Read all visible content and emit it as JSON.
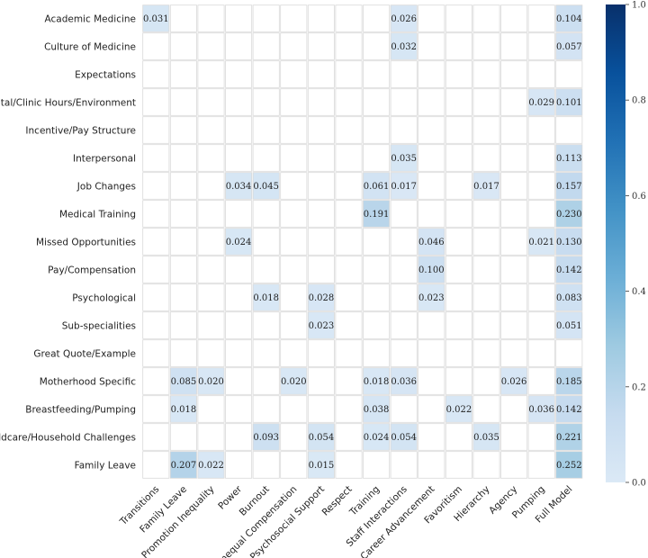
{
  "chart_data": {
    "type": "heatmap",
    "title": "",
    "xlabel": "",
    "ylabel": "",
    "rows": [
      "Academic Medicine",
      "Culture of Medicine",
      "Expectations",
      "Hospital/Clinic Hours/Environment",
      "Incentive/Pay Structure",
      "Interpersonal",
      "Job Changes",
      "Medical Training",
      "Missed Opportunities",
      "Pay/Compensation",
      "Psychological",
      "Sub-specialities",
      "Great Quote/Example",
      "Motherhood Specific",
      "Breastfeeding/Pumping",
      "Childcare/Household Challenges",
      "Family Leave"
    ],
    "columns": [
      "Transitions",
      "Family Leave",
      "Promotion Inequality",
      "Power",
      "Burnout",
      "Unequal Compensation",
      "Psychosocial Support",
      "Respect",
      "Training",
      "Staff Interactions",
      "Career Advancement",
      "Favoritism",
      "Hierarchy",
      "Agency",
      "Pumping",
      "Full Model"
    ],
    "values": [
      [
        0.031,
        null,
        null,
        null,
        null,
        null,
        null,
        null,
        null,
        0.026,
        null,
        null,
        null,
        null,
        null,
        0.104
      ],
      [
        null,
        null,
        null,
        null,
        null,
        null,
        null,
        null,
        null,
        0.032,
        null,
        null,
        null,
        null,
        null,
        0.057
      ],
      [
        null,
        null,
        null,
        null,
        null,
        null,
        null,
        null,
        null,
        null,
        null,
        null,
        null,
        null,
        null,
        null
      ],
      [
        null,
        null,
        null,
        null,
        null,
        null,
        null,
        null,
        null,
        null,
        null,
        null,
        null,
        null,
        0.029,
        0.101
      ],
      [
        null,
        null,
        null,
        null,
        null,
        null,
        null,
        null,
        null,
        null,
        null,
        null,
        null,
        null,
        null,
        null
      ],
      [
        null,
        null,
        null,
        null,
        null,
        null,
        null,
        null,
        null,
        0.035,
        null,
        null,
        null,
        null,
        null,
        0.113
      ],
      [
        null,
        null,
        null,
        0.034,
        0.045,
        null,
        null,
        null,
        0.061,
        0.017,
        null,
        null,
        0.017,
        null,
        null,
        0.157
      ],
      [
        null,
        null,
        null,
        null,
        null,
        null,
        null,
        null,
        0.191,
        null,
        null,
        null,
        null,
        null,
        null,
        0.23
      ],
      [
        null,
        null,
        null,
        0.024,
        null,
        null,
        null,
        null,
        null,
        null,
        0.046,
        null,
        null,
        null,
        0.021,
        0.13
      ],
      [
        null,
        null,
        null,
        null,
        null,
        null,
        null,
        null,
        null,
        null,
        0.1,
        null,
        null,
        null,
        null,
        0.142
      ],
      [
        null,
        null,
        null,
        null,
        0.018,
        null,
        0.028,
        null,
        null,
        null,
        0.023,
        null,
        null,
        null,
        null,
        0.083
      ],
      [
        null,
        null,
        null,
        null,
        null,
        null,
        0.023,
        null,
        null,
        null,
        null,
        null,
        null,
        null,
        null,
        0.051
      ],
      [
        null,
        null,
        null,
        null,
        null,
        null,
        null,
        null,
        null,
        null,
        null,
        null,
        null,
        null,
        null,
        null
      ],
      [
        null,
        0.085,
        0.02,
        null,
        null,
        0.02,
        null,
        null,
        0.018,
        0.036,
        null,
        null,
        null,
        0.026,
        null,
        0.185
      ],
      [
        null,
        0.018,
        null,
        null,
        null,
        null,
        null,
        null,
        0.038,
        null,
        null,
        0.022,
        null,
        null,
        0.036,
        0.142
      ],
      [
        null,
        null,
        null,
        null,
        0.093,
        null,
        0.054,
        null,
        0.024,
        0.054,
        null,
        null,
        0.035,
        null,
        null,
        0.221
      ],
      [
        null,
        0.207,
        0.022,
        null,
        null,
        null,
        0.015,
        null,
        null,
        null,
        null,
        null,
        null,
        null,
        null,
        0.252
      ]
    ],
    "value_format": "0.000",
    "color_scale": {
      "name": "Blues",
      "min": 0.0,
      "max": 1.0,
      "ticks": [
        0.0,
        0.2,
        0.4,
        0.6,
        0.8,
        1.0
      ],
      "tick_labels": [
        "0.0",
        "0.2",
        "0.4",
        "0.6",
        "0.8",
        "1.0"
      ],
      "stops": [
        "#dbe9f6",
        "#c6dbef",
        "#9ecae1",
        "#6baed6",
        "#4292c6",
        "#2171b5",
        "#08519c",
        "#08306b"
      ]
    },
    "empty_cell_color": "#ffffff",
    "grid_color": "#d9d9d9",
    "colorbar": "right"
  }
}
